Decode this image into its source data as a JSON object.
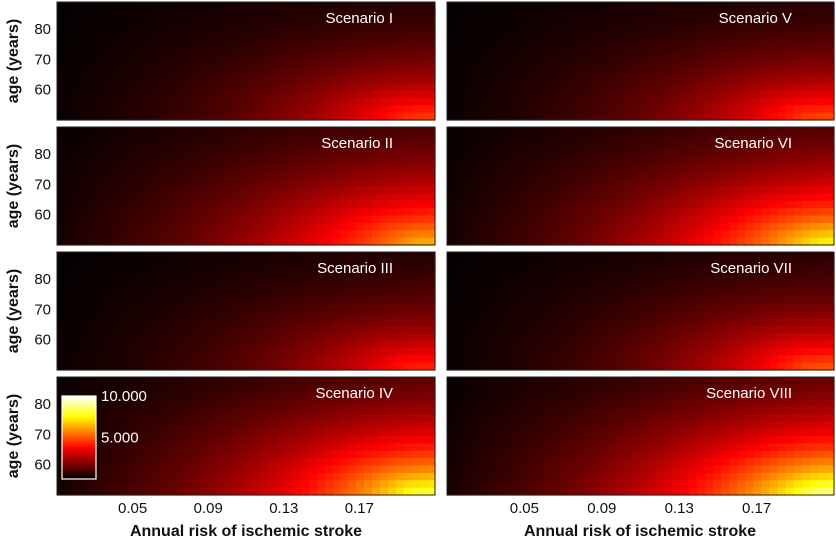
{
  "chart_data": {
    "type": "heatmap",
    "x_label": "Annual risk of ischemic stroke",
    "y_label": "age (years)",
    "x_ticks": [
      0.05,
      0.09,
      0.13,
      0.17
    ],
    "x_tick_labels": [
      "0.05",
      "0.09",
      "0.13",
      "0.17"
    ],
    "y_ticks": [
      60,
      70,
      80
    ],
    "y_tick_labels": [
      "60",
      "70",
      "80"
    ],
    "xlim": [
      0.01,
      0.21
    ],
    "ylim": [
      50,
      89
    ],
    "colormap": "hot",
    "colorbar": {
      "ticks": [
        {
          "label": "10.000",
          "value": 10
        },
        {
          "label": "5.000",
          "value": 5
        }
      ],
      "range": [
        0,
        10
      ],
      "panel": "Scenario IV"
    },
    "panels": [
      {
        "title": "Scenario I",
        "column": "left",
        "row": 0,
        "peak": 4.6,
        "peak_x": 0.195,
        "peak_y": 52,
        "tail": 0.9,
        "ax": 0.55,
        "by": 0.35
      },
      {
        "title": "Scenario II",
        "column": "left",
        "row": 1,
        "peak": 6.4,
        "peak_x": 0.2,
        "peak_y": 51,
        "tail": 0.6,
        "ax": 0.85,
        "by": 0.45
      },
      {
        "title": "Scenario III",
        "column": "left",
        "row": 2,
        "peak": 4.3,
        "peak_x": 0.195,
        "peak_y": 52,
        "tail": 0.9,
        "ax": 0.55,
        "by": 0.35
      },
      {
        "title": "Scenario IV",
        "column": "left",
        "row": 3,
        "peak": 8.2,
        "peak_x": 0.2,
        "peak_y": 51,
        "tail": 0.6,
        "ax": 1.0,
        "by": 0.5
      },
      {
        "title": "Scenario V",
        "column": "right",
        "row": 0,
        "peak": 4.8,
        "peak_x": 0.195,
        "peak_y": 52,
        "tail": 0.9,
        "ax": 0.55,
        "by": 0.35
      },
      {
        "title": "Scenario VI",
        "column": "right",
        "row": 1,
        "peak": 7.8,
        "peak_x": 0.205,
        "peak_y": 50,
        "tail": 0.6,
        "ax": 1.0,
        "by": 0.5
      },
      {
        "title": "Scenario VII",
        "column": "right",
        "row": 2,
        "peak": 5.0,
        "peak_x": 0.195,
        "peak_y": 52,
        "tail": 0.9,
        "ax": 0.6,
        "by": 0.35
      },
      {
        "title": "Scenario VIII",
        "column": "right",
        "row": 3,
        "peak": 9.2,
        "peak_x": 0.205,
        "peak_y": 50,
        "tail": 0.6,
        "ax": 1.05,
        "by": 0.5
      }
    ]
  }
}
